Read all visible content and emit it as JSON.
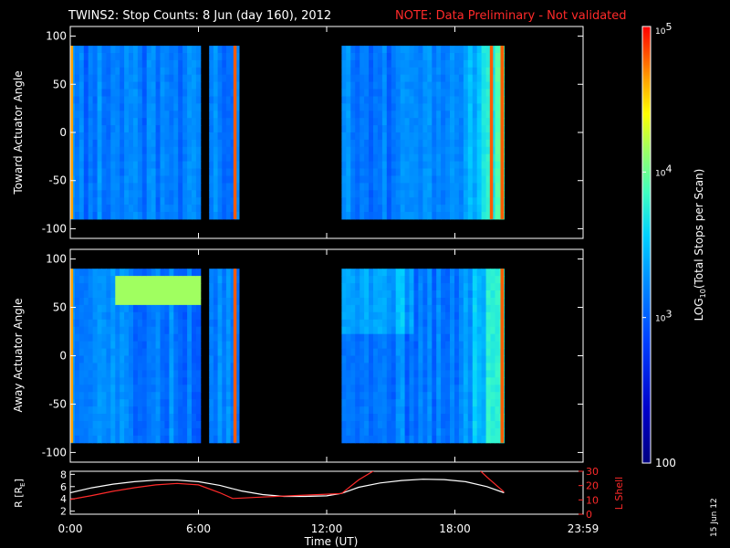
{
  "title": {
    "main": "TWINS2: Stop Counts:  8 Jun (day 160), 2012",
    "note": "NOTE: Data Preliminary - Not validated"
  },
  "footer": {
    "xlabel": "Time (UT)",
    "date_stamp": "15 Jun 12"
  },
  "colorbar": {
    "label": "LOG10(Total Stops per Scan)",
    "label_base": "LOG",
    "label_sub": "10",
    "label_rest": "(Total Stops per Scan)",
    "ticks": [
      "100",
      "10^3",
      "10^4",
      "10^5"
    ],
    "scale": "log",
    "range": [
      100,
      100000
    ]
  },
  "colors": {
    "background": "#000000",
    "axes": "#ffffff",
    "note": "#ff2a2a",
    "l_shell": "#ff2a2a",
    "r_line": "#ffffff"
  },
  "chart_data": [
    {
      "type": "heatmap",
      "id": "toward",
      "ylabel": "Toward Actuator Angle",
      "x_unit": "hours UT",
      "xlim": [
        0,
        24
      ],
      "ylim": [
        -110,
        110
      ],
      "y_ticks": [
        "100",
        "50",
        "0",
        "-50",
        "-100"
      ],
      "x_ticks": [
        "0:00",
        "6:00",
        "12:00",
        "18:00",
        "23:59"
      ],
      "data_y_range": [
        -90,
        90
      ],
      "data_intervals_hours": [
        [
          0.0,
          6.1
        ],
        [
          6.5,
          7.9
        ],
        [
          12.7,
          20.3
        ]
      ],
      "dominant_level": "~1e3 (blue)",
      "high_bands_hours": [
        0.05,
        7.7,
        19.7,
        20.2
      ]
    },
    {
      "type": "heatmap",
      "id": "away",
      "ylabel": "Away Actuator Angle",
      "x_unit": "hours UT",
      "xlim": [
        0,
        24
      ],
      "ylim": [
        -110,
        110
      ],
      "y_ticks": [
        "100",
        "50",
        "0",
        "-50",
        "-100"
      ],
      "x_ticks": [
        "0:00",
        "6:00",
        "12:00",
        "18:00",
        "23:59"
      ],
      "data_y_range": [
        -90,
        90
      ],
      "data_intervals_hours": [
        [
          0.0,
          6.1
        ],
        [
          6.5,
          7.9
        ],
        [
          12.7,
          20.3
        ]
      ],
      "dominant_level": "~1e3 (blue)",
      "high_bands_hours": [
        0.05,
        7.7,
        20.2
      ],
      "feature": "enhanced counts near +70 deg between 2h and 6h"
    },
    {
      "type": "line",
      "id": "orbit",
      "xlim": [
        0,
        24
      ],
      "left_axis": {
        "label": "R [RE]",
        "label_base": "R [R",
        "label_sub": "E",
        "label_end": "]",
        "ticks": [
          "8",
          "6",
          "4",
          "2"
        ],
        "ylim": [
          1.5,
          8.5
        ]
      },
      "right_axis": {
        "label": "L Shell",
        "ticks": [
          "30",
          "20",
          "10",
          "0"
        ],
        "ylim": [
          0,
          30
        ]
      },
      "x_ticks": [
        "0:00",
        "6:00",
        "12:00",
        "18:00",
        "23:59"
      ],
      "series": [
        {
          "name": "R [RE]",
          "axis": "left",
          "x": [
            0.0,
            1.0,
            2.0,
            3.0,
            4.0,
            5.0,
            6.0,
            7.0,
            8.0,
            9.0,
            10.0,
            11.0,
            12.0,
            12.7,
            13.5,
            14.5,
            15.5,
            16.5,
            17.5,
            18.5,
            19.5,
            20.3
          ],
          "y": [
            5.0,
            5.8,
            6.4,
            6.8,
            7.05,
            7.05,
            6.8,
            6.2,
            5.3,
            4.7,
            4.4,
            4.4,
            4.5,
            4.9,
            5.9,
            6.6,
            7.0,
            7.2,
            7.15,
            6.8,
            6.0,
            5.0
          ]
        },
        {
          "name": "L Shell",
          "axis": "right",
          "x": [
            0.0,
            1.0,
            2.0,
            3.0,
            4.0,
            5.0,
            6.0,
            7.0,
            7.6,
            9.0,
            10.5,
            12.0,
            12.7,
            13.5,
            14.5,
            19.0,
            19.5,
            20.3
          ],
          "y": [
            10.3,
            13.0,
            16.0,
            18.5,
            20.5,
            21.5,
            20.5,
            15.0,
            11.0,
            12.0,
            13.0,
            14.0,
            14.5,
            24.0,
            33.0,
            33.0,
            26.0,
            15.5
          ]
        }
      ]
    }
  ]
}
